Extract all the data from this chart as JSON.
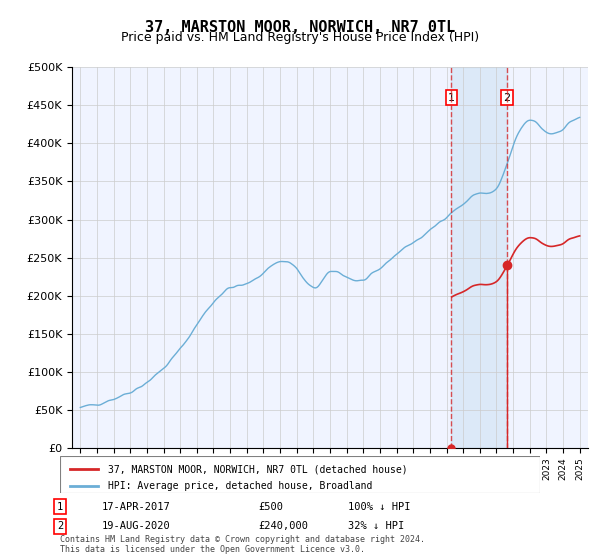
{
  "title": "37, MARSTON MOOR, NORWICH, NR7 0TL",
  "subtitle": "Price paid vs. HM Land Registry's House Price Index (HPI)",
  "ylabel": "",
  "ylim": [
    0,
    500000
  ],
  "yticks": [
    0,
    50000,
    100000,
    150000,
    200000,
    250000,
    300000,
    350000,
    400000,
    450000,
    500000
  ],
  "ytick_labels": [
    "£0",
    "£50K",
    "£100K",
    "£150K",
    "£200K",
    "£250K",
    "£300K",
    "£350K",
    "£400K",
    "£450K",
    "£500K"
  ],
  "hpi_color": "#6baed6",
  "price_color": "#d62728",
  "background_color": "#ffffff",
  "grid_color": "#cccccc",
  "sale1_date_num": 2017.29,
  "sale1_price": 500,
  "sale2_date_num": 2020.63,
  "sale2_price": 240000,
  "legend_label1": "37, MARSTON MOOR, NORWICH, NR7 0TL (detached house)",
  "legend_label2": "HPI: Average price, detached house, Broadland",
  "annotation1_label": "1",
  "annotation2_label": "2",
  "annotation1_text": "17-APR-2017",
  "annotation1_price": "£500",
  "annotation1_hpi": "100% ↓ HPI",
  "annotation2_text": "19-AUG-2020",
  "annotation2_price": "£240,000",
  "annotation2_hpi": "32% ↓ HPI",
  "footer": "Contains HM Land Registry data © Crown copyright and database right 2024.\nThis data is licensed under the Open Government Licence v3.0.",
  "title_fontsize": 11,
  "subtitle_fontsize": 9,
  "tick_fontsize": 8
}
